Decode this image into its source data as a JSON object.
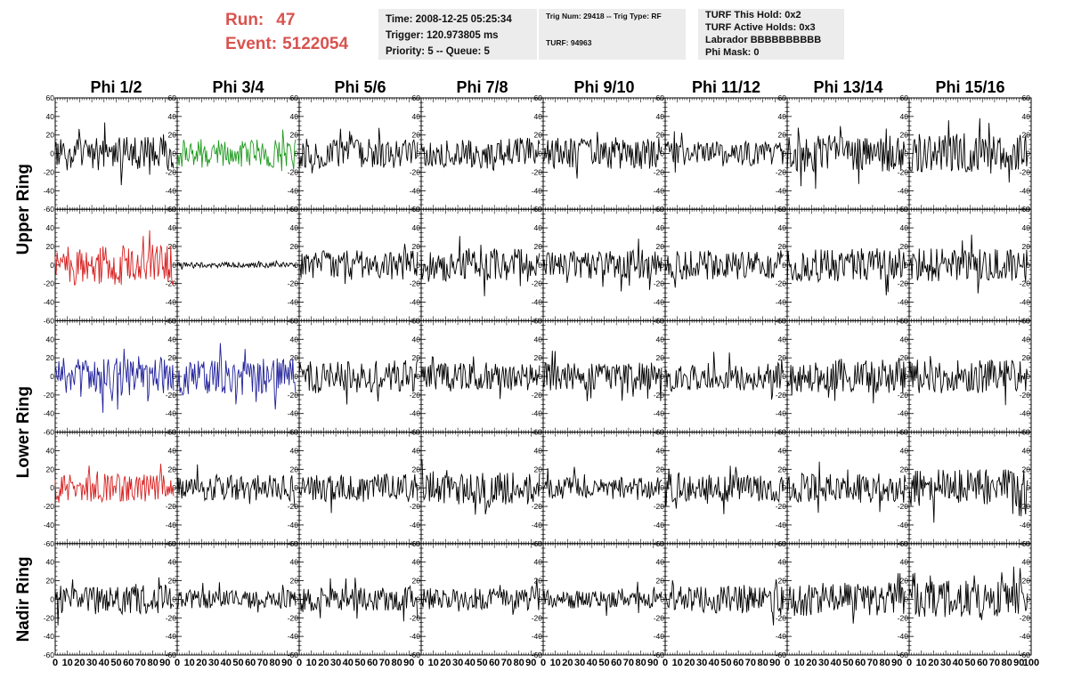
{
  "run_info": {
    "run_label": "Run:",
    "run_value": "47",
    "event_label": "Event:",
    "event_value": "5122054"
  },
  "info_box_1": {
    "time": "Time: 2008-12-25 05:25:34",
    "trigger": "Trigger: 120.973805 ms",
    "priority": "Priority: 5 -- Queue: 5"
  },
  "info_box_2": {
    "trig": "Trig Num: 29418 -- Trig Type: RF",
    "turf": "TURF: 94963"
  },
  "info_box_3": {
    "this_hold": "TURF This Hold: 0x2",
    "active_holds": "TURF Active Holds: 0x3",
    "labrador": "Labrador BBBBBBBBBB",
    "phi_mask": "Phi Mask: 0"
  },
  "columns": [
    "Phi 1/2",
    "Phi 3/4",
    "Phi 5/6",
    "Phi 7/8",
    "Phi 9/10",
    "Phi 11/12",
    "Phi 13/14",
    "Phi 15/16"
  ],
  "ring_labels": [
    {
      "text": "Upper Ring",
      "center_row": 0.5
    },
    {
      "text": "Lower Ring",
      "center_row": 2.5
    },
    {
      "text": "Nadir Ring",
      "center_row": 4.0
    }
  ],
  "colors": {
    "text_red": "#d9534f",
    "trace_default": "#000000",
    "trace_green": "#1f9a1f",
    "trace_red": "#d62020",
    "trace_blue": "#20209a",
    "box_bg": "#ececec"
  },
  "chart_data": {
    "type": "line",
    "description_rows": 5,
    "description_cols": 8,
    "xlim": [
      0,
      100
    ],
    "ylim": [
      -60,
      60
    ],
    "x_tick_labels": [
      "0",
      "10",
      "20",
      "30",
      "40",
      "50",
      "60",
      "70",
      "80",
      "90",
      "100"
    ],
    "y_tick_labels": [
      "60",
      "40",
      "20",
      "0",
      "-20",
      "-40",
      "-60"
    ],
    "y_ticks": [
      60,
      40,
      20,
      0,
      -20,
      -40,
      -60
    ],
    "x_ticks": [
      0,
      10,
      20,
      30,
      40,
      50,
      60,
      70,
      80,
      90,
      100
    ],
    "panels": [
      [
        {
          "amp": 18,
          "color": "trace_default"
        },
        {
          "amp": 16,
          "color": "trace_green"
        },
        {
          "amp": 16,
          "color": "trace_default"
        },
        {
          "amp": 17,
          "color": "trace_default"
        },
        {
          "amp": 17,
          "color": "trace_default"
        },
        {
          "amp": 13,
          "color": "trace_default"
        },
        {
          "amp": 20,
          "color": "trace_default"
        },
        {
          "amp": 22,
          "color": "trace_default"
        }
      ],
      [
        {
          "amp": 22,
          "color": "trace_red"
        },
        {
          "amp": 3,
          "color": "trace_default"
        },
        {
          "amp": 16,
          "color": "trace_default"
        },
        {
          "amp": 18,
          "color": "trace_default"
        },
        {
          "amp": 15,
          "color": "trace_default"
        },
        {
          "amp": 16,
          "color": "trace_default"
        },
        {
          "amp": 18,
          "color": "trace_default"
        },
        {
          "amp": 18,
          "color": "trace_default"
        }
      ],
      [
        {
          "amp": 22,
          "color": "trace_blue"
        },
        {
          "amp": 20,
          "color": "trace_blue"
        },
        {
          "amp": 18,
          "color": "trace_default"
        },
        {
          "amp": 15,
          "color": "trace_default"
        },
        {
          "amp": 15,
          "color": "trace_default"
        },
        {
          "amp": 15,
          "color": "trace_default"
        },
        {
          "amp": 18,
          "color": "trace_default"
        },
        {
          "amp": 18,
          "color": "trace_default"
        }
      ],
      [
        {
          "amp": 15,
          "color": "trace_red"
        },
        {
          "amp": 14,
          "color": "trace_default"
        },
        {
          "amp": 15,
          "color": "trace_default"
        },
        {
          "amp": 18,
          "color": "trace_default"
        },
        {
          "amp": 12,
          "color": "trace_default"
        },
        {
          "amp": 15,
          "color": "trace_default"
        },
        {
          "amp": 16,
          "color": "trace_default"
        },
        {
          "amp": 20,
          "color": "trace_default"
        }
      ],
      [
        {
          "amp": 16,
          "color": "trace_default"
        },
        {
          "amp": 10,
          "color": "trace_default"
        },
        {
          "amp": 13,
          "color": "trace_default"
        },
        {
          "amp": 12,
          "color": "trace_default"
        },
        {
          "amp": 10,
          "color": "trace_default"
        },
        {
          "amp": 15,
          "color": "trace_default"
        },
        {
          "amp": 18,
          "color": "trace_default"
        },
        {
          "amp": 20,
          "color": "trace_default"
        }
      ]
    ],
    "samples_per_trace": 130
  }
}
